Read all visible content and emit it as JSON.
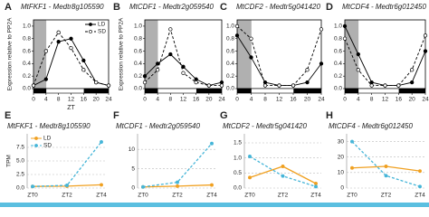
{
  "chart_data": [
    {
      "type": "line",
      "panel": "A",
      "title": "MtFKF1 - Medtr8g105590",
      "ylabel": "Expression relative to PP2A",
      "xlabel": "ZT",
      "x": [
        0,
        4,
        8,
        12,
        16,
        20,
        24
      ],
      "xlim": [
        0,
        24
      ],
      "xticks": [
        0,
        4,
        8,
        12,
        16,
        20,
        24
      ],
      "ylim": [
        0,
        1.1
      ],
      "yticks": [
        {
          "value": 0,
          "label": "0.0"
        },
        0.2,
        0.4,
        0.6,
        0.8,
        {
          "value": 1,
          "label": "1.0"
        }
      ],
      "legend": "upper right",
      "series": [
        {
          "name": "LD",
          "color": "#000000",
          "line_style": "solid",
          "marker": "filled",
          "values": [
            0.05,
            0.15,
            0.75,
            0.8,
            0.45,
            0.1,
            0.05
          ]
        },
        {
          "name": "SD",
          "color": "#000000",
          "line_style": "dashed",
          "marker": "open",
          "values": [
            0.05,
            0.6,
            0.9,
            0.65,
            0.3,
            0.1,
            0.05
          ]
        }
      ]
    },
    {
      "type": "line",
      "panel": "B",
      "title": "MtCDF1 - Medtr2g059540",
      "ylabel": "Expression relative to PP2A",
      "x": [
        0,
        4,
        8,
        12,
        16,
        20,
        24
      ],
      "xlim": [
        0,
        24
      ],
      "xticks": [
        0,
        4,
        8,
        12,
        16,
        20,
        24
      ],
      "ylim": [
        0,
        1.1
      ],
      "yticks": [
        {
          "value": 0,
          "label": "0.0"
        },
        0.2,
        0.4,
        0.6,
        0.8,
        {
          "value": 1,
          "label": "1.0"
        }
      ],
      "series": [
        {
          "name": "LD",
          "color": "#000000",
          "line_style": "solid",
          "marker": "filled",
          "values": [
            0.2,
            0.4,
            0.55,
            0.35,
            0.15,
            0.05,
            0.1
          ]
        },
        {
          "name": "SD",
          "color": "#000000",
          "line_style": "dashed",
          "marker": "open",
          "values": [
            0.1,
            0.3,
            0.95,
            0.25,
            0.1,
            0.05,
            0.05
          ]
        }
      ]
    },
    {
      "type": "line",
      "panel": "C",
      "title": "MtCDF2 - Medtr5g041420",
      "x": [
        0,
        4,
        8,
        12,
        16,
        20,
        24
      ],
      "xlim": [
        0,
        24
      ],
      "xticks": [
        0,
        4,
        8,
        12,
        16,
        20,
        24
      ],
      "ylim": [
        0,
        1.1
      ],
      "yticks": [
        {
          "value": 0,
          "label": "0.0"
        },
        0.2,
        0.4,
        0.6,
        0.8,
        {
          "value": 1,
          "label": "1.0"
        }
      ],
      "series": [
        {
          "name": "LD",
          "color": "#000000",
          "line_style": "solid",
          "marker": "filled",
          "values": [
            0.85,
            0.5,
            0.1,
            0.05,
            0.05,
            0.1,
            0.4
          ]
        },
        {
          "name": "SD",
          "color": "#000000",
          "line_style": "dashed",
          "marker": "open",
          "values": [
            1.0,
            0.8,
            0.05,
            0.05,
            0.05,
            0.3,
            0.95
          ]
        }
      ]
    },
    {
      "type": "line",
      "panel": "D",
      "title": "MtCDF4 - Medtr6g012450",
      "x": [
        0,
        4,
        8,
        12,
        16,
        20,
        24
      ],
      "xlim": [
        0,
        24
      ],
      "xticks": [
        0,
        4,
        8,
        12,
        16,
        20,
        24
      ],
      "ylim": [
        0,
        1.1
      ],
      "yticks": [
        {
          "value": 0,
          "label": "0.0"
        },
        0.2,
        0.4,
        0.6,
        0.8,
        {
          "value": 1,
          "label": "1.0"
        }
      ],
      "series": [
        {
          "name": "LD",
          "color": "#000000",
          "line_style": "solid",
          "marker": "filled",
          "values": [
            1.0,
            0.55,
            0.1,
            0.05,
            0.05,
            0.1,
            0.6
          ]
        },
        {
          "name": "SD",
          "color": "#000000",
          "line_style": "dashed",
          "marker": "open",
          "values": [
            0.8,
            0.3,
            0.05,
            0.05,
            0.05,
            0.3,
            0.85
          ]
        }
      ]
    },
    {
      "type": "line",
      "panel": "E",
      "title": "MtFKF1 - Medtr8g105590",
      "ylabel": "TPM",
      "categories": [
        "ZT0",
        "ZT2",
        "ZT4"
      ],
      "ylim": [
        0,
        10
      ],
      "yticks": [
        {
          "value": 0,
          "label": "0.0"
        },
        2.5,
        {
          "value": 5,
          "label": "5.0"
        },
        7.5
      ],
      "grid": true,
      "legend": "upper left",
      "series": [
        {
          "name": "LD",
          "color": "#f0a020",
          "line_style": "solid",
          "marker": "filled",
          "values": [
            0.3,
            0.35,
            0.6
          ]
        },
        {
          "name": "SD",
          "color": "#45b5d8",
          "line_style": "dashed",
          "marker": "filled",
          "values": [
            0.3,
            0.5,
            8.5
          ]
        }
      ]
    },
    {
      "type": "line",
      "panel": "F",
      "title": "MtCDF1 - Medtr2g059540",
      "categories": [
        "ZT0",
        "ZT2",
        "ZT4"
      ],
      "ylim": [
        0,
        14
      ],
      "yticks": [
        0,
        5,
        10
      ],
      "grid": true,
      "series": [
        {
          "name": "LD",
          "color": "#f0a020",
          "line_style": "solid",
          "marker": "filled",
          "values": [
            0.3,
            0.5,
            0.8
          ]
        },
        {
          "name": "SD",
          "color": "#45b5d8",
          "line_style": "dashed",
          "marker": "filled",
          "values": [
            0.3,
            1.5,
            11.5
          ]
        }
      ]
    },
    {
      "type": "line",
      "panel": "G",
      "title": "MtCDF2 - Medtr5g041420",
      "categories": [
        "ZT0",
        "ZT2",
        "ZT4"
      ],
      "ylim": [
        0,
        1.8
      ],
      "yticks": [
        {
          "value": 0,
          "label": "0.0"
        },
        0.5,
        {
          "value": 1,
          "label": "1.0"
        },
        1.5
      ],
      "grid": true,
      "series": [
        {
          "name": "LD",
          "color": "#f0a020",
          "line_style": "solid",
          "marker": "filled",
          "values": [
            0.35,
            0.72,
            0.15
          ]
        },
        {
          "name": "SD",
          "color": "#45b5d8",
          "line_style": "dashed",
          "marker": "filled",
          "values": [
            1.05,
            0.4,
            0.05
          ]
        }
      ]
    },
    {
      "type": "line",
      "panel": "H",
      "title": "MtCDF4 - Medtr6g012450",
      "categories": [
        "ZT0",
        "ZT2",
        "ZT4"
      ],
      "ylim": [
        0,
        35
      ],
      "yticks": [
        0,
        10,
        20,
        30
      ],
      "grid": true,
      "series": [
        {
          "name": "LD",
          "color": "#f0a020",
          "line_style": "solid",
          "marker": "filled",
          "values": [
            13,
            14,
            11
          ]
        },
        {
          "name": "SD",
          "color": "#45b5d8",
          "line_style": "dashed",
          "marker": "filled",
          "values": [
            30,
            8,
            1
          ]
        }
      ]
    }
  ]
}
